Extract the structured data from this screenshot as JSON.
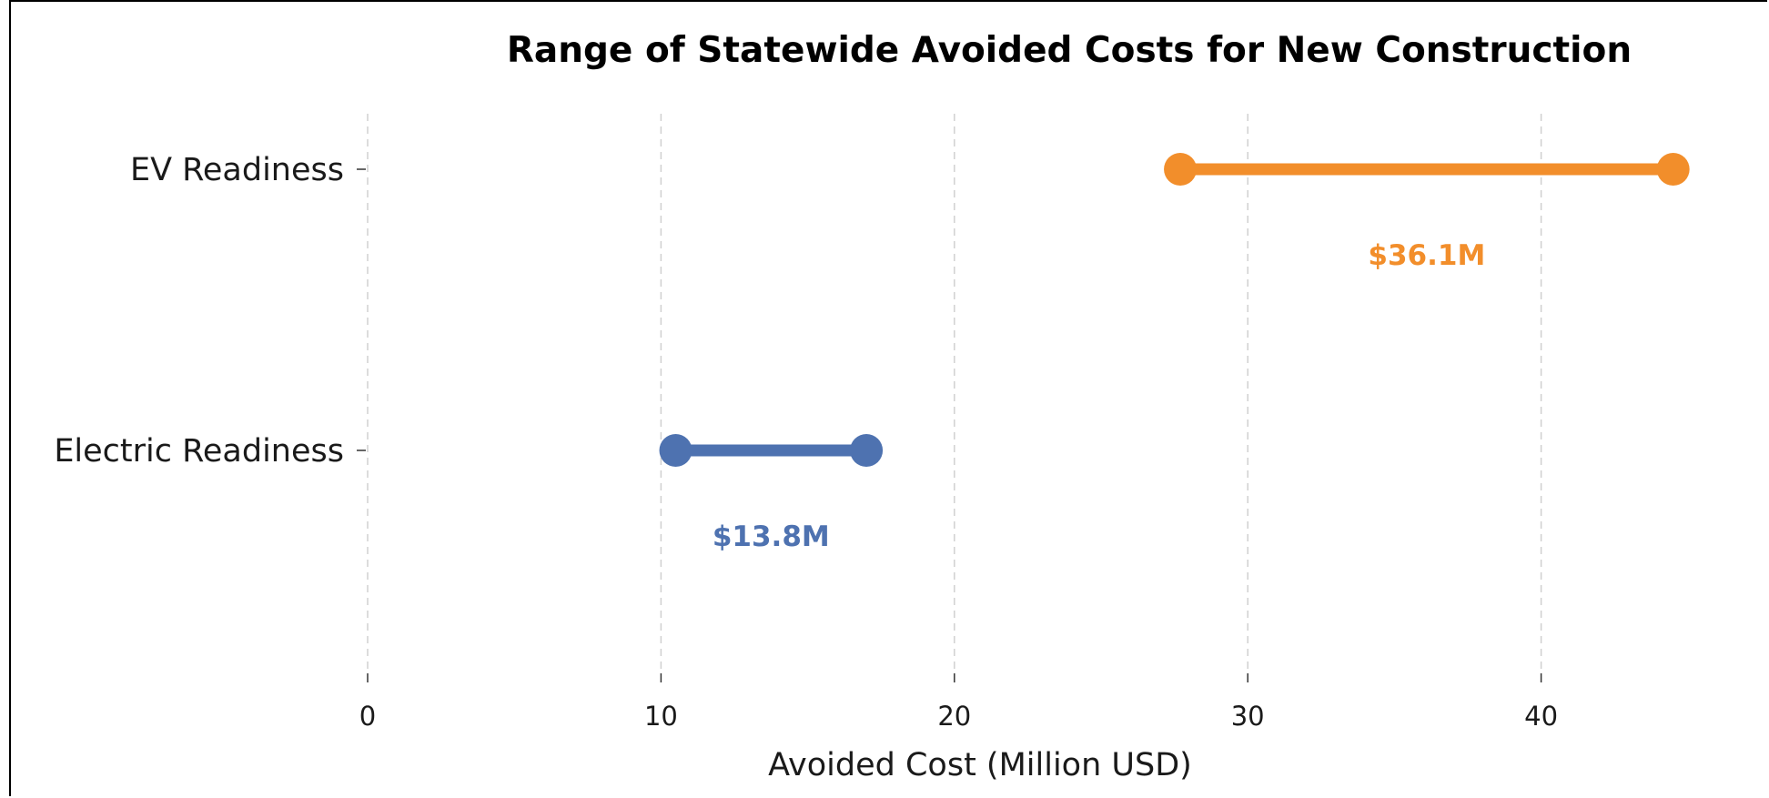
{
  "chart_data": {
    "type": "dumbbell",
    "title": "Range of Statewide Avoided Costs for New Construction",
    "xlabel": "Avoided Cost (Million USD)",
    "ylabel": "",
    "xlim": [
      0,
      47
    ],
    "xticks": [
      0,
      10,
      20,
      30,
      40
    ],
    "grid": "vertical-dashed",
    "categories": [
      "EV Readiness",
      "Electric Readiness"
    ],
    "series": [
      {
        "category": "EV Readiness",
        "low": 27.7,
        "high": 44.5,
        "label": "$36.1M",
        "color": "#F28E2B"
      },
      {
        "category": "Electric Readiness",
        "low": 10.5,
        "high": 17.0,
        "label": "$13.8M",
        "color": "#4E72B0"
      }
    ]
  }
}
